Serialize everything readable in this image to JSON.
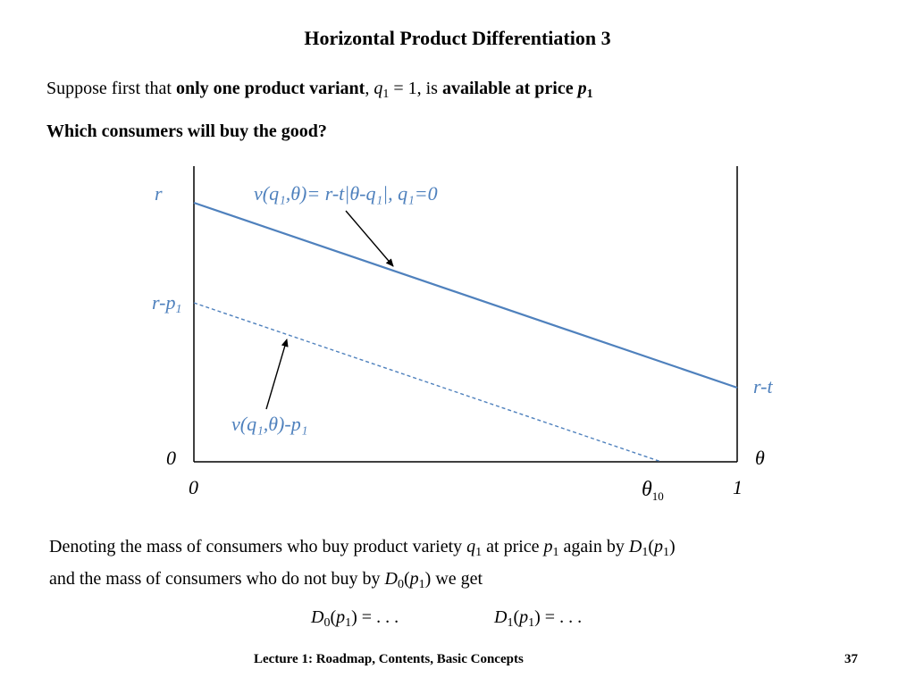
{
  "slide": {
    "title": "Horizontal Product Differentiation 3",
    "intro": {
      "prefix": "Suppose first that ",
      "bold_phrase": "only one product variant",
      "comma": ", ",
      "q_var": "q",
      "q_sub": "1",
      "equals": " = 1, is ",
      "bold_tail": "available at price ",
      "p_var": "p",
      "p_sub": "1"
    },
    "question": "Which consumers will buy the good?",
    "paragraph": {
      "t1": "Denoting the mass of consumers who buy product variety ",
      "q_var": "q",
      "q_sub": "1",
      "t2": " at price ",
      "p_var": "p",
      "p_sub": "1",
      "t3": " again by ",
      "D_var": "D",
      "D1_sub": "1",
      "open": "(",
      "p2_var": "p",
      "p2_sub": "1",
      "close": ")",
      "t4": "and the mass of consumers who do not buy by ",
      "D0_var": "D",
      "D0_sub": "0",
      "t5": " we get"
    },
    "equations": {
      "eq0": {
        "D": "D",
        "sub": "0",
        "open": "(",
        "p": "p",
        "psub": "1",
        "rest": ") = . . ."
      },
      "eq1": {
        "D": "D",
        "sub": "1",
        "open": "(",
        "p": "p",
        "psub": "1",
        "rest": ") = . . ."
      }
    },
    "footer": "Lecture 1: Roadmap, Contents, Basic Concepts",
    "page_number": "37"
  },
  "diagram": {
    "labels": {
      "r": "r",
      "r_minus_p1": "r-p",
      "r_minus_p1_sub": "1",
      "r_minus_t": "r-t",
      "origin_y": "0",
      "theta_axis": "θ",
      "x_zero": "0",
      "x_one": "1",
      "theta10": "θ",
      "theta10_sub": "10",
      "valuation_formula": "v(q₁,θ)= r-t|θ-q₁|, q₁=0",
      "net_valuation": "v(q₁,θ)-p₁"
    },
    "colors": {
      "line": "#4f81bd",
      "label_blue": "#4f81bd",
      "axis": "#000000"
    }
  }
}
